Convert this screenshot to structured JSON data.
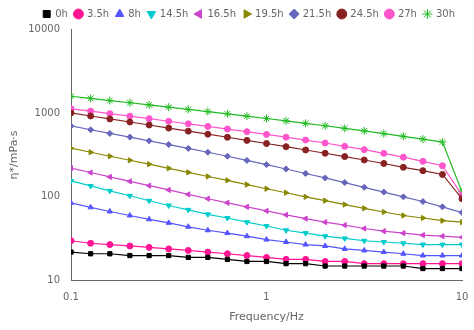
{
  "chart_data": {
    "type": "line",
    "xlabel": "Frequency/Hz",
    "ylabel": "η*/mPa·s",
    "x": [
      0.1,
      0.126,
      0.158,
      0.2,
      0.251,
      0.316,
      0.398,
      0.501,
      0.631,
      0.794,
      1.0,
      1.259,
      1.585,
      1.995,
      2.512,
      3.162,
      3.981,
      5.012,
      6.31,
      7.943,
      10.0
    ],
    "series": [
      {
        "name": "0h",
        "color": "#000000",
        "marker": "square",
        "values": [
          22,
          21,
          21,
          20,
          20,
          20,
          19,
          19,
          18,
          17,
          17,
          16,
          16,
          15,
          15,
          15,
          15,
          15,
          14,
          14,
          14
        ]
      },
      {
        "name": "3.5h",
        "color": "#ff1493",
        "marker": "circle",
        "values": [
          30,
          28,
          27,
          26,
          25,
          24,
          23,
          22,
          21,
          20,
          19,
          18,
          18,
          17,
          17,
          16,
          16,
          16,
          16,
          16,
          16
        ]
      },
      {
        "name": "8h",
        "color": "#5555ff",
        "marker": "triangle-up",
        "values": [
          85,
          75,
          67,
          60,
          54,
          49,
          44,
          40,
          37,
          34,
          31,
          29,
          27,
          26,
          24,
          23,
          22,
          21,
          20,
          20,
          20
        ]
      },
      {
        "name": "14.5h",
        "color": "#00cccc",
        "marker": "triangle-down",
        "values": [
          155,
          135,
          118,
          103,
          90,
          79,
          70,
          62,
          56,
          50,
          45,
          40,
          37,
          34,
          32,
          30,
          29,
          28,
          27,
          27,
          27
        ]
      },
      {
        "name": "16.5h",
        "color": "#cc44cc",
        "marker": "triangle-left",
        "values": [
          220,
          195,
          173,
          153,
          136,
          121,
          107,
          95,
          85,
          76,
          68,
          61,
          55,
          50,
          46,
          42,
          39,
          37,
          35,
          34,
          33
        ]
      },
      {
        "name": "19.5h",
        "color": "#888800",
        "marker": "triangle-right",
        "values": [
          380,
          340,
          305,
          273,
          245,
          219,
          196,
          175,
          157,
          140,
          125,
          112,
          100,
          90,
          81,
          73,
          66,
          60,
          56,
          52,
          50
        ]
      },
      {
        "name": "21.5h",
        "color": "#6666bb",
        "marker": "diamond",
        "values": [
          700,
          630,
          570,
          515,
          465,
          420,
          378,
          340,
          305,
          272,
          242,
          215,
          190,
          168,
          148,
          130,
          114,
          100,
          88,
          76,
          65
        ]
      },
      {
        "name": "24.5h",
        "color": "#882222",
        "marker": "circle",
        "values": [
          1000,
          920,
          848,
          780,
          718,
          660,
          607,
          558,
          513,
          471,
          432,
          396,
          362,
          331,
          302,
          275,
          250,
          225,
          205,
          185,
          95
        ]
      },
      {
        "name": "27h",
        "color": "#ff55cc",
        "marker": "circle",
        "values": [
          1120,
          1050,
          980,
          915,
          854,
          796,
          742,
          691,
          643,
          598,
          555,
          514,
          475,
          438,
          400,
          365,
          330,
          297,
          265,
          235,
          105
        ]
      },
      {
        "name": "30h",
        "color": "#22bb22",
        "marker": "star",
        "values": [
          1580,
          1490,
          1405,
          1323,
          1245,
          1172,
          1102,
          1037,
          974,
          914,
          858,
          804,
          752,
          703,
          656,
          611,
          568,
          527,
          488,
          450,
          115
        ]
      }
    ],
    "xlim": [
      0.1,
      10
    ],
    "ylim": [
      10,
      10000
    ],
    "xticks": [
      0.1,
      1,
      10
    ],
    "yticks": [
      10,
      100,
      1000,
      10000
    ],
    "log": true,
    "grid": false,
    "legend": "upper right"
  }
}
